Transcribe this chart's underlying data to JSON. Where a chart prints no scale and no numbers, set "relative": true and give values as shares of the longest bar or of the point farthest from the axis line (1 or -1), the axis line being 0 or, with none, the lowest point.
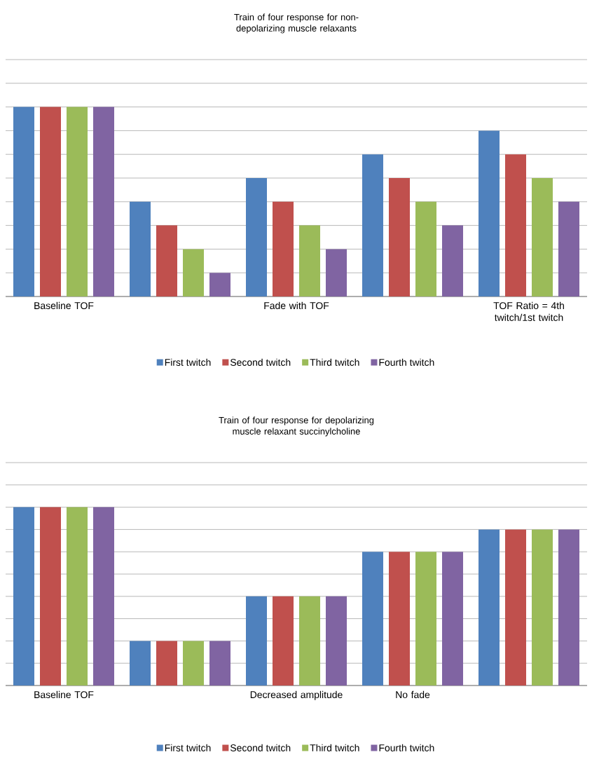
{
  "chart_data": [
    {
      "type": "bar",
      "title": "Train of four response for non-depolarizing muscle relaxants",
      "categories": [
        "Baseline TOF",
        null,
        "Fade with TOF",
        null,
        "TOF Ratio = 4th twitch/1st twitch"
      ],
      "relative": true,
      "grid": "y",
      "legend": "bottom",
      "series": [
        {
          "name": "First twitch",
          "color": "#4f81bd",
          "values": [
            1,
            0.5,
            0.625,
            0.75,
            0.875
          ]
        },
        {
          "name": "Second twitch",
          "color": "#c0504d",
          "values": [
            1,
            0.375,
            0.5,
            0.625,
            0.75
          ]
        },
        {
          "name": "Third twitch",
          "color": "#9bbb59",
          "values": [
            1,
            0.25,
            0.375,
            0.5,
            0.625
          ]
        },
        {
          "name": "Fourth twitch",
          "color": "#8064a2",
          "values": [
            1,
            0.125,
            0.25,
            0.375,
            0.5
          ]
        }
      ]
    },
    {
      "type": "bar",
      "title": "Train of four response for depolarizing muscle relaxant succinylcholine",
      "categories": [
        "Baseline TOF",
        null,
        "Decreased amplitude",
        "No fade",
        null
      ],
      "relative": true,
      "grid": "y",
      "legend": "bottom",
      "series": [
        {
          "name": "First twitch",
          "color": "#4f81bd",
          "values": [
            1,
            0.25,
            0.5,
            0.75,
            0.875
          ]
        },
        {
          "name": "Second twitch",
          "color": "#c0504d",
          "values": [
            1,
            0.25,
            0.5,
            0.75,
            0.875
          ]
        },
        {
          "name": "Third twitch",
          "color": "#9bbb59",
          "values": [
            1,
            0.25,
            0.5,
            0.75,
            0.875
          ]
        },
        {
          "name": "Fourth twitch",
          "color": "#8064a2",
          "values": [
            1,
            0.25,
            0.5,
            0.75,
            0.875
          ]
        }
      ]
    }
  ]
}
